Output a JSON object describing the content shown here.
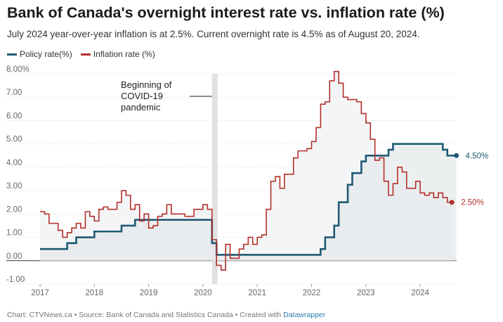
{
  "header": {
    "title": "Bank of Canada's overnight interest rate vs. inflation rate (%)",
    "subtitle": "July 2024 year-over-year inflation is at 2.5%. Current overnight rate is 4.5% as of August 20, 2024."
  },
  "footer": {
    "prefix": "Chart: CTVNews.ca • Source: Bank of Canada and Statistics Canada • Created with ",
    "link": "Datawrapper"
  },
  "colors": {
    "policy": "#1f5a73",
    "inflation": "#b3302c",
    "fill": "#e6e9eb",
    "grid": "#dddddd",
    "covid_band": "#dcdcdc"
  },
  "chart_data": {
    "type": "line",
    "ylim": [
      -1,
      8
    ],
    "xlim": [
      "2017-01",
      "2024-12"
    ],
    "grid": true,
    "legend_position": "top-left",
    "y_ticks": [
      {
        "value": 8,
        "label": "8.00%"
      },
      {
        "value": 7,
        "label": "7.00"
      },
      {
        "value": 6,
        "label": "6.00"
      },
      {
        "value": 5,
        "label": "5.00"
      },
      {
        "value": 4,
        "label": "4.00"
      },
      {
        "value": 3,
        "label": "3.00"
      },
      {
        "value": 2,
        "label": "2.00"
      },
      {
        "value": 1,
        "label": "1.00"
      },
      {
        "value": 0,
        "label": "0.00"
      },
      {
        "value": -1,
        "label": "-1.00"
      }
    ],
    "x_ticks": [
      {
        "value": 2017,
        "label": "2017"
      },
      {
        "value": 2018,
        "label": "2018"
      },
      {
        "value": 2019,
        "label": "2019"
      },
      {
        "value": 2020,
        "label": "2020"
      },
      {
        "value": 2021,
        "label": "2021"
      },
      {
        "value": 2022,
        "label": "2022"
      },
      {
        "value": 2023,
        "label": "2023"
      },
      {
        "value": 2024,
        "label": "2024"
      }
    ],
    "annotation": {
      "lines": [
        "Beginning of",
        "COVID-19",
        "pandemic"
      ],
      "band": [
        "2020-03",
        "2020-04"
      ]
    },
    "series": [
      {
        "name": "Policy rate(%)",
        "end_label": "4.50%",
        "step": true,
        "points": [
          [
            "2017-01",
            0.5
          ],
          [
            "2017-07",
            0.75
          ],
          [
            "2017-09",
            1.0
          ],
          [
            "2018-01",
            1.25
          ],
          [
            "2018-07",
            1.5
          ],
          [
            "2018-10",
            1.75
          ],
          [
            "2020-03",
            1.25
          ],
          [
            "2020-03",
            0.75
          ],
          [
            "2020-04",
            0.25
          ],
          [
            "2022-03",
            0.5
          ],
          [
            "2022-04",
            1.0
          ],
          [
            "2022-06",
            1.5
          ],
          [
            "2022-07",
            2.5
          ],
          [
            "2022-09",
            3.25
          ],
          [
            "2022-10",
            3.75
          ],
          [
            "2022-12",
            4.25
          ],
          [
            "2023-01",
            4.5
          ],
          [
            "2023-06",
            4.75
          ],
          [
            "2023-07",
            5.0
          ],
          [
            "2024-06",
            4.75
          ],
          [
            "2024-07",
            4.5
          ],
          [
            "2024-08",
            4.5
          ]
        ]
      },
      {
        "name": "Inflation rate (%)",
        "end_label": "2.50%",
        "step": true,
        "points": [
          [
            "2017-01",
            2.1
          ],
          [
            "2017-02",
            2.0
          ],
          [
            "2017-03",
            1.6
          ],
          [
            "2017-05",
            1.3
          ],
          [
            "2017-06",
            1.0
          ],
          [
            "2017-07",
            1.2
          ],
          [
            "2017-08",
            1.4
          ],
          [
            "2017-09",
            1.6
          ],
          [
            "2017-10",
            1.4
          ],
          [
            "2017-11",
            2.1
          ],
          [
            "2017-12",
            1.9
          ],
          [
            "2018-01",
            1.7
          ],
          [
            "2018-02",
            2.2
          ],
          [
            "2018-03",
            2.3
          ],
          [
            "2018-04",
            2.2
          ],
          [
            "2018-06",
            2.5
          ],
          [
            "2018-07",
            3.0
          ],
          [
            "2018-08",
            2.8
          ],
          [
            "2018-09",
            2.2
          ],
          [
            "2018-10",
            2.4
          ],
          [
            "2018-11",
            1.7
          ],
          [
            "2018-12",
            2.0
          ],
          [
            "2019-01",
            1.4
          ],
          [
            "2019-02",
            1.5
          ],
          [
            "2019-03",
            1.9
          ],
          [
            "2019-04",
            2.0
          ],
          [
            "2019-05",
            2.4
          ],
          [
            "2019-06",
            2.0
          ],
          [
            "2019-07",
            2.0
          ],
          [
            "2019-09",
            1.9
          ],
          [
            "2019-10",
            1.9
          ],
          [
            "2019-11",
            2.2
          ],
          [
            "2019-12",
            2.2
          ],
          [
            "2020-01",
            2.4
          ],
          [
            "2020-02",
            2.2
          ],
          [
            "2020-03",
            0.9
          ],
          [
            "2020-04",
            -0.2
          ],
          [
            "2020-05",
            -0.4
          ],
          [
            "2020-06",
            0.7
          ],
          [
            "2020-07",
            0.1
          ],
          [
            "2020-09",
            0.5
          ],
          [
            "2020-10",
            0.7
          ],
          [
            "2020-11",
            1.0
          ],
          [
            "2020-12",
            0.7
          ],
          [
            "2021-01",
            1.0
          ],
          [
            "2021-02",
            1.1
          ],
          [
            "2021-03",
            2.2
          ],
          [
            "2021-04",
            3.4
          ],
          [
            "2021-05",
            3.6
          ],
          [
            "2021-06",
            3.1
          ],
          [
            "2021-07",
            3.7
          ],
          [
            "2021-09",
            4.4
          ],
          [
            "2021-10",
            4.7
          ],
          [
            "2021-12",
            4.8
          ],
          [
            "2022-01",
            5.1
          ],
          [
            "2022-02",
            5.7
          ],
          [
            "2022-03",
            6.7
          ],
          [
            "2022-04",
            6.8
          ],
          [
            "2022-05",
            7.7
          ],
          [
            "2022-06",
            8.1
          ],
          [
            "2022-07",
            7.6
          ],
          [
            "2022-08",
            7.0
          ],
          [
            "2022-09",
            6.9
          ],
          [
            "2022-10",
            6.9
          ],
          [
            "2022-11",
            6.8
          ],
          [
            "2022-12",
            6.3
          ],
          [
            "2023-01",
            5.9
          ],
          [
            "2023-02",
            5.2
          ],
          [
            "2023-03",
            4.3
          ],
          [
            "2023-04",
            4.4
          ],
          [
            "2023-05",
            3.4
          ],
          [
            "2023-06",
            2.8
          ],
          [
            "2023-07",
            3.3
          ],
          [
            "2023-08",
            4.0
          ],
          [
            "2023-09",
            3.8
          ],
          [
            "2023-10",
            3.1
          ],
          [
            "2023-11",
            3.1
          ],
          [
            "2023-12",
            3.4
          ],
          [
            "2024-01",
            2.9
          ],
          [
            "2024-02",
            2.8
          ],
          [
            "2024-03",
            2.9
          ],
          [
            "2024-04",
            2.7
          ],
          [
            "2024-05",
            2.9
          ],
          [
            "2024-06",
            2.7
          ],
          [
            "2024-07",
            2.5
          ]
        ]
      }
    ]
  }
}
